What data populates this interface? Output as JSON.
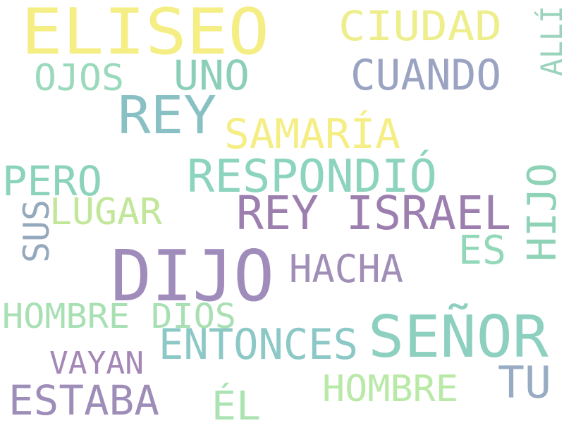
{
  "words": [
    {
      "text": "ELISEO",
      "color": "#f5ee84"
    },
    {
      "text": "CIUDAD",
      "color": "#eeee8c"
    },
    {
      "text": "ALLÍ",
      "color": "#9bd3bd"
    },
    {
      "text": "OJOS",
      "color": "#9bd9bd"
    },
    {
      "text": "UNO",
      "color": "#8bcfb9"
    },
    {
      "text": "CUANDO",
      "color": "#9aa3c1"
    },
    {
      "text": "REY",
      "color": "#88c0c3"
    },
    {
      "text": "SAMARÍA",
      "color": "#f5ee84"
    },
    {
      "text": "PERO",
      "color": "#8bd3ba"
    },
    {
      "text": "RESPONDIÓ",
      "color": "#8dd4bf"
    },
    {
      "text": "HIJO",
      "color": "#8fd3b7"
    },
    {
      "text": "SUS",
      "color": "#95a9bd"
    },
    {
      "text": "LUGAR",
      "color": "#c2e79b"
    },
    {
      "text": "REY ISRAEL",
      "color": "#9c7fae"
    },
    {
      "text": "ES",
      "color": "#92d8b8"
    },
    {
      "text": "DIJO",
      "color": "#9f8cbb"
    },
    {
      "text": "HACHA",
      "color": "#a18eb6"
    },
    {
      "text": "HOMBRE DIOS",
      "color": "#a8e0b3"
    },
    {
      "text": "SEÑOR",
      "color": "#8ed0c0"
    },
    {
      "text": "ENTONCES",
      "color": "#8cc8c6"
    },
    {
      "text": "VAYAN",
      "color": "#a487b6"
    },
    {
      "text": "TU",
      "color": "#97acc3"
    },
    {
      "text": "ESTABA",
      "color": "#9d8db8"
    },
    {
      "text": "ÉL",
      "color": "#abe3b3"
    },
    {
      "text": "HOMBRE",
      "color": "#b9e9a6"
    }
  ]
}
